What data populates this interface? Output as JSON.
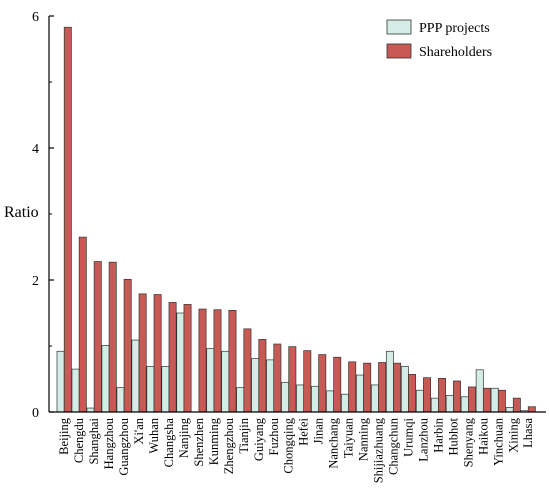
{
  "chart_data": {
    "type": "bar",
    "title": "",
    "xlabel": "",
    "ylabel": "Ratio",
    "ylim": [
      0,
      6
    ],
    "yticks": [
      0,
      2,
      4,
      6
    ],
    "grid": false,
    "legend_position": "top-right",
    "categories": [
      "Beijing",
      "Chengdu",
      "Shanghai",
      "Hangzhou",
      "Guangzhou",
      "Xi'an",
      "Wuhan",
      "Changsha",
      "Nanjing",
      "Shenzhen",
      "Kunming",
      "Zhengzhou",
      "Tianjin",
      "Guiyang",
      "Fuzhou",
      "Chongqing",
      "Hefei",
      "Jinan",
      "Nanchang",
      "Taiyuan",
      "Nanning",
      "Shijiazhuang",
      "Changchun",
      "Urumqi",
      "Lanzhou",
      "Harbin",
      "Hubhot",
      "Shenyang",
      "Haikou",
      "Yinchuan",
      "Xining",
      "Lhasa"
    ],
    "series": [
      {
        "name": "PPP projects",
        "color": "#d3ede6",
        "values": [
          0.92,
          0.65,
          0.06,
          1.01,
          0.37,
          1.09,
          0.69,
          0.69,
          1.5,
          0.0,
          0.96,
          0.92,
          0.37,
          0.81,
          0.79,
          0.45,
          0.41,
          0.39,
          0.32,
          0.27,
          0.56,
          0.41,
          0.92,
          0.69,
          0.33,
          0.21,
          0.25,
          0.23,
          0.64,
          0.36,
          0.07,
          0.02
        ]
      },
      {
        "name": "Shareholders",
        "color": "#c85a55",
        "values": [
          5.83,
          2.65,
          2.28,
          2.27,
          2.01,
          1.79,
          1.78,
          1.66,
          1.63,
          1.56,
          1.55,
          1.54,
          1.26,
          1.1,
          1.03,
          0.99,
          0.93,
          0.87,
          0.83,
          0.76,
          0.74,
          0.75,
          0.74,
          0.57,
          0.52,
          0.51,
          0.47,
          0.38,
          0.36,
          0.33,
          0.21,
          0.08
        ]
      }
    ]
  }
}
